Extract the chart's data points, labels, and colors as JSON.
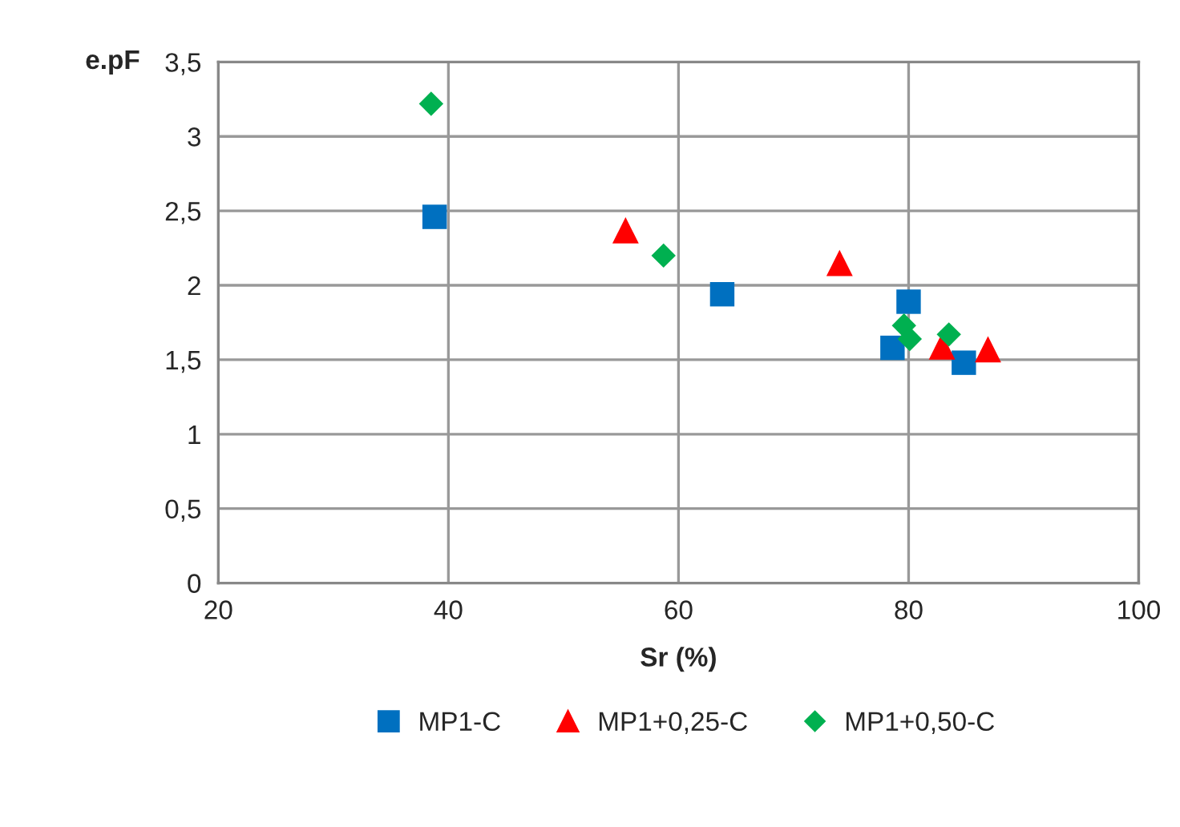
{
  "chart_data": {
    "type": "scatter",
    "xlabel": "Sr (%)",
    "ylabel": "e.pF",
    "xlim": [
      20,
      100
    ],
    "xticks": [
      20,
      40,
      60,
      80,
      100
    ],
    "ylim": [
      0,
      3.5
    ],
    "yticks": [
      {
        "value": 0,
        "label": "0"
      },
      {
        "value": 0.5,
        "label": "0,5"
      },
      {
        "value": 1,
        "label": "1"
      },
      {
        "value": 1.5,
        "label": "1,5"
      },
      {
        "value": 2,
        "label": "2"
      },
      {
        "value": 2.5,
        "label": "2,5"
      },
      {
        "value": 3,
        "label": "3"
      },
      {
        "value": 3.5,
        "label": "3,5"
      }
    ],
    "grid": true,
    "legend": "bottom",
    "series": [
      {
        "name": "MP1-C",
        "color": "#0070c0",
        "marker": "square",
        "x": [
          38.8,
          63.8,
          80.0,
          78.6,
          84.8
        ],
        "values": [
          2.46,
          1.94,
          1.89,
          1.58,
          1.48
        ]
      },
      {
        "name": "MP1+0,25-C",
        "color": "#ff0000",
        "marker": "triangle",
        "x": [
          55.4,
          74.0,
          82.9,
          86.9
        ],
        "values": [
          2.37,
          2.15,
          1.59,
          1.57
        ]
      },
      {
        "name": "MP1+0,50-C",
        "color": "#00b050",
        "marker": "diamond",
        "x": [
          38.5,
          58.7,
          79.6,
          80.1,
          83.5
        ],
        "values": [
          3.22,
          2.2,
          1.73,
          1.64,
          1.67
        ]
      }
    ]
  }
}
